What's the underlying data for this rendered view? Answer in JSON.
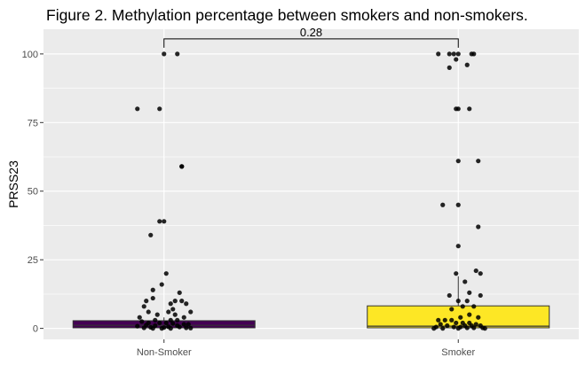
{
  "chart_data": {
    "type": "box",
    "title": "Figure 2. Methylation percentage between smokers and non-smokers.",
    "xlabel": "",
    "ylabel": "PRSS23",
    "categories": [
      "Non-Smoker",
      "Smoker"
    ],
    "ylim": [
      -4,
      109
    ],
    "yticks": [
      0,
      25,
      50,
      75,
      100
    ],
    "grid": true,
    "legend": "none",
    "background_color": "#ebebeb",
    "gridline_color": "#ffffff",
    "boxes": [
      {
        "category": "Non-Smoker",
        "fill": "#440154",
        "q1": 0.2,
        "median": 1.1,
        "q3": 2.8,
        "whisker_low": 0,
        "whisker_high": 4
      },
      {
        "category": "Smoker",
        "fill": "#fde725",
        "q1": 0.2,
        "median": 0.8,
        "q3": 8.2,
        "whisker_low": 0,
        "whisker_high": 19
      }
    ],
    "points": [
      {
        "category": "Non-Smoker",
        "x_offset": [
          0.0,
          0.06,
          -0.12,
          -0.02,
          0.08,
          0.08,
          -0.02,
          0.0,
          -0.06,
          0.01,
          -0.01,
          -0.05,
          0.07,
          -0.05,
          0.08,
          0.05,
          -0.08,
          0.03,
          0.1,
          0.12,
          -0.09,
          0.04,
          -0.07,
          0.02,
          -0.03,
          0.05,
          -0.11,
          0.09,
          -0.04,
          0.03,
          0.06,
          -0.1,
          -0.07,
          -0.02,
          0.01,
          0.04,
          0.09,
          0.11,
          -0.08,
          -0.04,
          0.06,
          -0.12,
          0.02,
          0.07,
          -0.06,
          0.0,
          0.1,
          -0.09,
          0.12,
          -0.01,
          0.03,
          -0.05
        ],
        "y": [
          100,
          100,
          80,
          80,
          59,
          59,
          39,
          39,
          34,
          20,
          16,
          14,
          13,
          11,
          10,
          10,
          10,
          9,
          9,
          6,
          8,
          7,
          6,
          6,
          5,
          5,
          4,
          4,
          3,
          3,
          3,
          2.5,
          2,
          2,
          2,
          1.8,
          1.5,
          1.5,
          1.2,
          1,
          1,
          0.8,
          0.6,
          0.5,
          0.4,
          0.3,
          0.2,
          0.2,
          0.1,
          0,
          0,
          0
        ]
      },
      {
        "category": "Smoker",
        "x_offset": [
          -0.09,
          -0.04,
          -0.02,
          0.0,
          0.06,
          0.07,
          -0.01,
          0.04,
          -0.04,
          0.0,
          -0.01,
          0.05,
          0.0,
          0.09,
          -0.07,
          0.0,
          0.09,
          0.0,
          0.08,
          0.1,
          -0.01,
          0.03,
          0.05,
          0.1,
          -0.04,
          0.0,
          0.04,
          0.02,
          0.07,
          -0.03,
          0.05,
          0.01,
          0.09,
          -0.09,
          -0.06,
          -0.03,
          -0.01,
          0.02,
          0.05,
          0.08,
          -0.08,
          -0.05,
          0.03,
          0.06,
          0.1,
          -0.1,
          -0.02,
          0.01,
          0.04,
          0.07,
          0.11,
          -0.11,
          -0.07,
          0.0,
          0.12
        ],
        "y": [
          100,
          100,
          100,
          100,
          100,
          100,
          98,
          96,
          95,
          80,
          80,
          80,
          61,
          61,
          45,
          45,
          37,
          30,
          21,
          20,
          20,
          17,
          13,
          12,
          12,
          10,
          10,
          8,
          8,
          7,
          5,
          4,
          4,
          3,
          3,
          3,
          2,
          2,
          2,
          1.5,
          1.5,
          1,
          1,
          1,
          1,
          0.5,
          0.5,
          0.5,
          0.2,
          0.2,
          0.2,
          0,
          0,
          0,
          0
        ]
      }
    ],
    "annotation": {
      "label": "0.28",
      "y": 105.5
    }
  }
}
